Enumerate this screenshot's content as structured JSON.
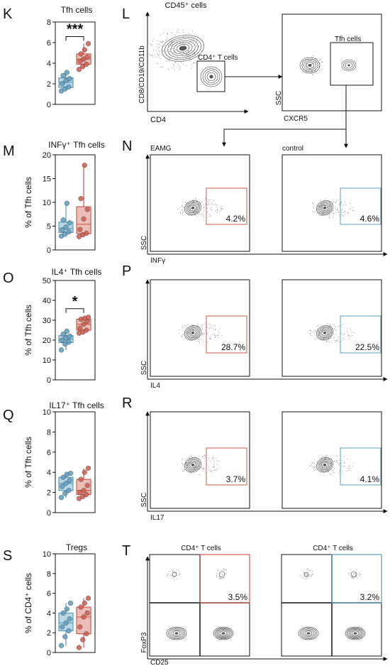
{
  "panels": {
    "K": {
      "letter": "K",
      "title": "Tfh cells",
      "ylabel": "",
      "sig": "***",
      "yticks": [
        "0",
        "2",
        "4",
        "6",
        "8"
      ],
      "ymax": 8,
      "control": [
        1.3,
        1.5,
        1.7,
        2.0,
        2.3,
        2.5,
        2.8,
        3.1
      ],
      "eamg": [
        3.4,
        3.7,
        3.9,
        4.2,
        4.4,
        4.6,
        4.9,
        5.3,
        5.9
      ]
    },
    "M": {
      "letter": "M",
      "title": "INFγ⁺ Tfh cells",
      "ylabel": "% of Tfh cells",
      "sig": "",
      "yticks": [
        "0",
        "5",
        "10",
        "15",
        "20"
      ],
      "ymax": 20,
      "control": [
        2.9,
        3.3,
        3.8,
        4.2,
        4.8,
        5.7,
        6.3,
        9.8
      ],
      "eamg": [
        2.8,
        3.2,
        3.5,
        4.3,
        6.5,
        8.5,
        10.8,
        17.8
      ]
    },
    "O": {
      "letter": "O",
      "title": "IL4⁺ Tfh cells",
      "ylabel": "% of Tfh cells",
      "sig": "*",
      "yticks": [
        "0",
        "10",
        "20",
        "30",
        "40",
        "50"
      ],
      "ymax": 50,
      "control": [
        15,
        18,
        19,
        20,
        21,
        22,
        23,
        24.5
      ],
      "eamg": [
        23.5,
        24,
        25,
        26,
        28,
        29.5,
        30.5,
        31,
        31.5
      ]
    },
    "Q": {
      "letter": "Q",
      "title": "IL17⁺ Tfh cells",
      "ylabel": "% of Tfh cells",
      "sig": "",
      "yticks": [
        "0",
        "2",
        "4",
        "6",
        "8",
        "10"
      ],
      "ymax": 10,
      "control": [
        1.5,
        1.9,
        2.2,
        2.6,
        2.9,
        3.2,
        3.5,
        3.8,
        3.9
      ],
      "eamg": [
        1.4,
        1.6,
        1.8,
        2.0,
        2.2,
        2.7,
        3.3,
        4.0,
        4.4
      ]
    },
    "S": {
      "letter": "S",
      "title": "Tregs",
      "ylabel": "% of CD4⁺ cells",
      "sig": "",
      "yticks": [
        "0",
        "2",
        "4",
        "6",
        "8",
        "10"
      ],
      "ymax": 10,
      "control": [
        0.7,
        1.6,
        2.2,
        2.6,
        3.0,
        3.4,
        4.0,
        4.4,
        5.0
      ],
      "eamg": [
        0.5,
        1.3,
        1.9,
        2.6,
        3.6,
        4.0,
        4.6,
        5.0,
        5.5
      ]
    }
  },
  "colors": {
    "control": "#5b9cbd",
    "eamg": "#cf5a4c",
    "control_fill": "#a9cde0",
    "eamg_fill": "#e8aea6"
  },
  "flow": {
    "L": {
      "letter": "L",
      "top_label": "CD45⁺ cells",
      "gate_label": "CD4⁺ T cells",
      "xlabel": "CD4",
      "ylabel": "CD8/CD19/CD11b",
      "right_gate": "Tfh cells",
      "right_xlabel": "CXCR5",
      "right_ylabel": "SSC"
    },
    "N": {
      "letter": "N",
      "left_label": "EAMG",
      "right_label": "control",
      "xlabel": "INFγ",
      "ylabel": "SSC",
      "eamg_pct": "4.2%",
      "control_pct": "4.6%"
    },
    "P": {
      "letter": "P",
      "xlabel": "IL4",
      "ylabel": "SSC",
      "eamg_pct": "28.7%",
      "control_pct": "22.5%"
    },
    "R": {
      "letter": "R",
      "xlabel": "IL17",
      "ylabel": "SSC",
      "eamg_pct": "3.7%",
      "control_pct": "4.1%"
    },
    "T": {
      "letter": "T",
      "left_title": "CD4⁺ T cells",
      "right_title": "CD4⁺ T cells",
      "xlabel": "CD25",
      "ylabel": "FoxP3",
      "eamg_pct": "3.5%",
      "control_pct": "3.2%"
    }
  }
}
